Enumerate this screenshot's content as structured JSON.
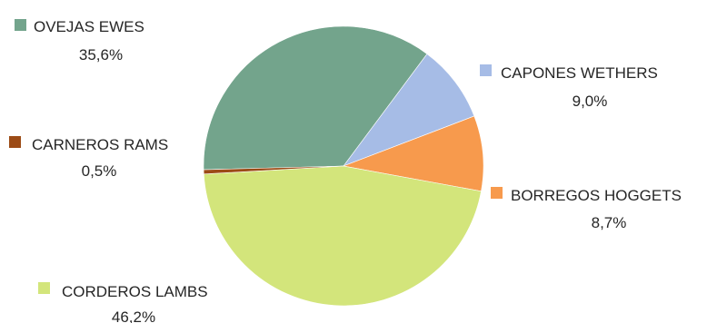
{
  "chart_data": {
    "type": "pie",
    "title": "",
    "slices": [
      {
        "name": "OVEJAS EWES",
        "value": 35.6,
        "label": "35,6%",
        "color": "#73a48c"
      },
      {
        "name": "CAPONES WETHERS",
        "value": 9.0,
        "label": "9,0%",
        "color": "#a6bce6"
      },
      {
        "name": "BORREGOS HOGGETS",
        "value": 8.7,
        "label": "8,7%",
        "color": "#f79a4d"
      },
      {
        "name": "CORDEROS LAMBS",
        "value": 46.2,
        "label": "46,2%",
        "color": "#d3e57b"
      },
      {
        "name": "CARNEROS RAMS",
        "value": 0.5,
        "label": "0,5%",
        "color": "#9c4b16"
      }
    ],
    "legend": "labels beside slices"
  }
}
